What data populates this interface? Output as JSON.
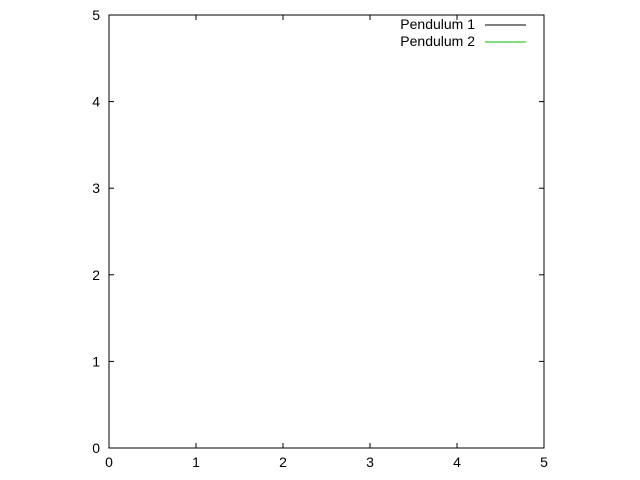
{
  "chart_data": {
    "type": "line",
    "title": "",
    "xlabel": "",
    "ylabel": "",
    "xlim": [
      0,
      5
    ],
    "ylim": [
      0,
      5
    ],
    "x_ticks": [
      "0",
      "1",
      "2",
      "3",
      "4",
      "5"
    ],
    "y_ticks": [
      "0",
      "1",
      "2",
      "3",
      "4",
      "5"
    ],
    "grid": false,
    "legend_position": "top-right",
    "series": [
      {
        "name": "Pendulum 1",
        "color": "#000000",
        "values": []
      },
      {
        "name": "Pendulum 2",
        "color": "#00c000",
        "values": []
      }
    ]
  }
}
